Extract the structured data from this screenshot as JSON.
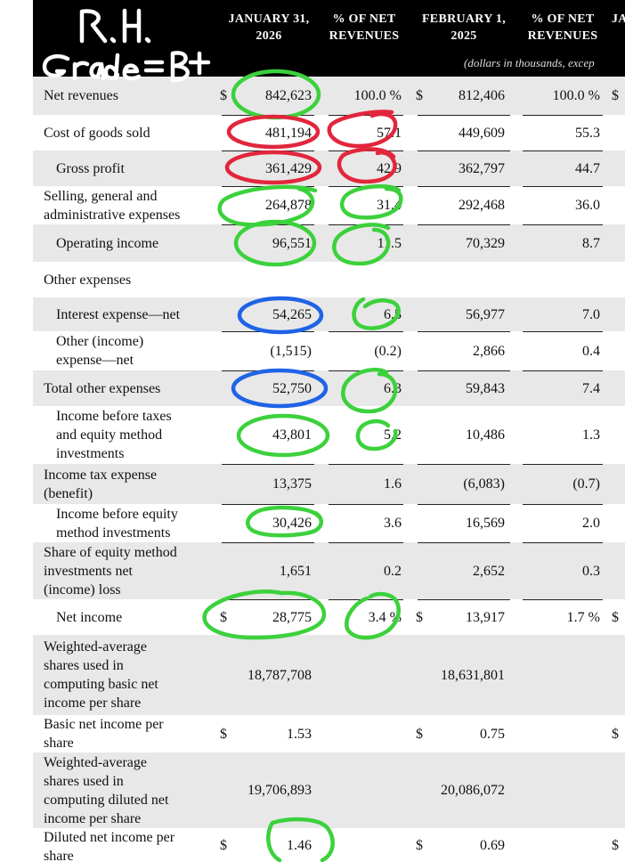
{
  "handwriting": {
    "line1": "R.H.",
    "line2": "Grade=B+"
  },
  "header": {
    "col1": "JANUARY 31,\n2026",
    "col2": "% OF NET\nREVENUES",
    "col3": "FEBRUARY 1,\n2025",
    "col4": "% OF NET\nREVENUES",
    "col5": "JA",
    "note": "(dollars in thousands, excep"
  },
  "rows": [
    {
      "label": "Net revenues",
      "c1": "842,623",
      "c2": "100.0 %",
      "c3": "812,406",
      "c4": "100.0 %",
      "d1": "$",
      "d3": "$",
      "d5": "$"
    },
    {
      "label": "Cost of goods sold",
      "c1": "481,194",
      "c2": "57.1",
      "c3": "449,609",
      "c4": "55.3"
    },
    {
      "label": "Gross profit",
      "c1": "361,429",
      "c2": "42.9",
      "c3": "362,797",
      "c4": "44.7"
    },
    {
      "label": "Selling, general and\nadministrative expenses",
      "c1": "264,878",
      "c2": "31.4",
      "c3": "292,468",
      "c4": "36.0"
    },
    {
      "label": "Operating income",
      "c1": "96,551",
      "c2": "11.5",
      "c3": "70,329",
      "c4": "8.7"
    },
    {
      "label": "Other expenses",
      "c1": "",
      "c2": "",
      "c3": "",
      "c4": ""
    },
    {
      "label": "Interest expense—net",
      "c1": "54,265",
      "c2": "6.5",
      "c3": "56,977",
      "c4": "7.0"
    },
    {
      "label": "Other (income)\nexpense—net",
      "c1": "(1,515)",
      "c2": "(0.2)",
      "c3": "2,866",
      "c4": "0.4"
    },
    {
      "label": "Total other expenses",
      "c1": "52,750",
      "c2": "6.3",
      "c3": "59,843",
      "c4": "7.4"
    },
    {
      "label": "Income before taxes\nand equity method\ninvestments",
      "c1": "43,801",
      "c2": "5.2",
      "c3": "10,486",
      "c4": "1.3"
    },
    {
      "label": "Income tax expense\n(benefit)",
      "c1": "13,375",
      "c2": "1.6",
      "c3": "(6,083)",
      "c4": "(0.7)"
    },
    {
      "label": "Income before equity\nmethod investments",
      "c1": "30,426",
      "c2": "3.6",
      "c3": "16,569",
      "c4": "2.0"
    },
    {
      "label": "Share of equity method\ninvestments net\n(income) loss",
      "c1": "1,651",
      "c2": "0.2",
      "c3": "2,652",
      "c4": "0.3"
    },
    {
      "label": "Net income",
      "c1": "28,775",
      "c2": "3.4 %",
      "c3": "13,917",
      "c4": "1.7 %",
      "d1": "$",
      "d3": "$",
      "d5": "$"
    },
    {
      "label": "Weighted-average\nshares used in\ncomputing basic net\nincome per share",
      "c1": "18,787,708",
      "c2": "",
      "c3": "18,631,801",
      "c4": ""
    },
    {
      "label": "Basic net income per\nshare",
      "c1": "1.53",
      "c2": "",
      "c3": "0.75",
      "c4": "",
      "d1": "$",
      "d3": "$",
      "d5": "$"
    },
    {
      "label": "Weighted-average\nshares used in\ncomputing diluted net\nincome per share",
      "c1": "19,706,893",
      "c2": "",
      "c3": "20,086,072",
      "c4": ""
    },
    {
      "label": "Diluted net income per\nshare",
      "c1": "1.46",
      "c2": "",
      "c3": "0.69",
      "c4": "",
      "d1": "$",
      "d3": "$",
      "d5": "$"
    }
  ],
  "colors": {
    "header_bg": "#000000",
    "shade": "#e8e8e8",
    "green_ink": "#3cd13c",
    "red_ink": "#e2263c",
    "blue_ink": "#1f63e6"
  }
}
